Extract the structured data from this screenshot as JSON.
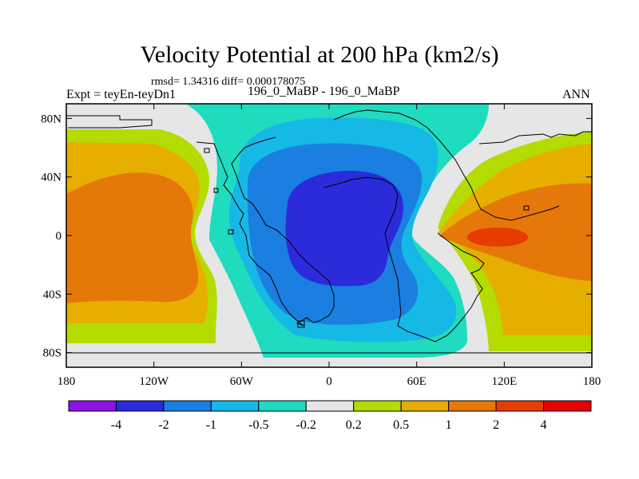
{
  "chart_data": {
    "type": "contour-map",
    "title": "Velocity Potential at 200 hPa (km2/s)",
    "subtitle": "rmsd= 1.34316 diff= 0.000178075",
    "left_label": "Expt = teyEn-teyDn1",
    "center_label": "196_0_MaBP - 196_0_MaBP",
    "right_label": "ANN",
    "x_ticks": [
      "180",
      "120W",
      "60W",
      "0",
      "60E",
      "120E",
      "180"
    ],
    "x_tick_values": [
      -180,
      -120,
      -60,
      0,
      60,
      120,
      180
    ],
    "y_ticks": [
      "80N",
      "40N",
      "0",
      "40S",
      "80S"
    ],
    "y_tick_values": [
      80,
      40,
      0,
      -40,
      -80
    ],
    "xlim": [
      -180,
      180
    ],
    "ylim": [
      -90,
      90
    ],
    "levels": [
      -4,
      -2,
      -1,
      -0.5,
      -0.2,
      0.2,
      0.5,
      1,
      2,
      4
    ],
    "colorbar_labels": [
      "-4",
      "-2",
      "-1",
      "-0.5",
      "-0.2",
      "0.2",
      "0.5",
      "1",
      "2",
      "4"
    ],
    "colorbar_colors": [
      "#8a13e6",
      "#2b2bdb",
      "#1a7fe0",
      "#16b8e6",
      "#1fdbc0",
      "#e6e6e6",
      "#b4dc00",
      "#e6af00",
      "#e6780a",
      "#e63c00",
      "#e60000"
    ],
    "features": [
      {
        "name": "central-minimum",
        "level": "< -2",
        "lon_center": 10,
        "lat_center": 0
      },
      {
        "name": "pacific-maximum",
        "level": "1 to 2",
        "lon_center": -150,
        "lat_center": 0
      },
      {
        "name": "indian-maximum-core",
        "level": "2 to 4",
        "lon_center": 125,
        "lat_center": 0
      }
    ]
  }
}
